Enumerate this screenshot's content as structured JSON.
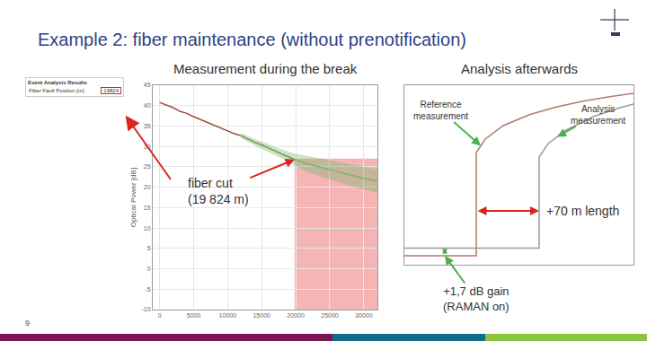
{
  "slide": {
    "title": "Example 2: fiber maintenance (without prenotification)",
    "page_number": 9
  },
  "table": {
    "title": "Event Analysis Results",
    "rows": [
      {
        "label": "Fiber Fault Position [m]",
        "value": "19824",
        "highlight": true
      }
    ]
  },
  "chart_data": [
    {
      "type": "line",
      "title": "Measurement during the break",
      "y_label": "Optical Power [dB]",
      "xlim": [
        -1000,
        32000
      ],
      "xticks": [
        0,
        5000,
        10000,
        15000,
        20000,
        25000,
        30000
      ],
      "ylim": [
        -10,
        45
      ],
      "yticks": [
        -10,
        -5,
        0,
        5,
        10,
        15,
        20,
        25,
        30,
        35,
        40,
        45
      ],
      "grid": true,
      "series": [
        {
          "type": "line",
          "color": "#9c4a3c",
          "x": [
            0,
            1000,
            2000,
            3000,
            4000,
            5000,
            6000,
            7000,
            8000,
            9000,
            10000,
            11000,
            12000,
            13000,
            14000,
            15000,
            16000,
            17000,
            18000,
            19000,
            19824
          ],
          "values": [
            40.8,
            40.1,
            39.5,
            38.6,
            38.1,
            37.3,
            36.6,
            36.0,
            35.2,
            34.6,
            33.9,
            33.1,
            32.6,
            31.8,
            31.0,
            30.4,
            29.6,
            28.9,
            28.1,
            27.4,
            26.8
          ]
        },
        {
          "type": "band",
          "color": "#6db35e",
          "x": [
            12000,
            14000,
            16000,
            18000,
            19824,
            22000,
            24000,
            26000,
            28000,
            30000,
            32000
          ],
          "values": [
            32.6,
            31.0,
            29.6,
            28.1,
            26.8,
            25.6,
            24.7,
            23.9,
            23.0,
            22.2,
            21.5
          ],
          "lower": [
            31.9,
            30.2,
            28.6,
            27.0,
            25.3,
            23.6,
            22.4,
            21.4,
            20.3,
            19.4,
            18.6
          ],
          "upper": [
            33.3,
            31.8,
            30.6,
            29.2,
            28.3,
            27.6,
            27.0,
            26.4,
            25.7,
            25.0,
            24.4
          ]
        }
      ],
      "highlight": {
        "x": [
          19824,
          32000
        ],
        "y": [
          -10,
          27
        ],
        "color": "#f5b5b5"
      },
      "annotations": [
        {
          "lines": [
            "fiber cut",
            "(19 824 m)"
          ],
          "x": 19824,
          "y": 26.8,
          "color": "#d9261c"
        }
      ]
    },
    {
      "type": "line",
      "title": "Analysis afterwards",
      "tick_labels": false,
      "xlim": [
        0,
        255
      ],
      "ylim": [
        0,
        40
      ],
      "grid": false,
      "series": [
        {
          "type": "line",
          "color": "#b07a6e",
          "x": [
            0,
            20,
            40,
            60,
            80,
            80,
            90,
            110,
            140,
            170,
            200,
            230,
            255
          ],
          "values": [
            2.0,
            2.0,
            2.0,
            2.0,
            2.0,
            25,
            28,
            31,
            33.5,
            35.2,
            36.5,
            37.5,
            38.2
          ]
        },
        {
          "type": "line",
          "color": "#9a9a9a",
          "x": [
            0,
            40,
            80,
            120,
            150,
            150,
            160,
            180,
            210,
            240,
            255
          ],
          "values": [
            3.7,
            3.7,
            3.7,
            3.7,
            3.7,
            24,
            27,
            30,
            33,
            35,
            35.8
          ]
        }
      ],
      "annotations": [
        {
          "lines": [
            "Reference",
            "measurement"
          ],
          "x": 85,
          "y": 26.5,
          "color": "#4caf50"
        },
        {
          "lines": [
            "Analysis",
            "measurement"
          ],
          "x": 170,
          "y": 28.5,
          "color": "#4caf50"
        },
        {
          "lines": [
            "+70 m length"
          ],
          "from_x": 80,
          "to_x": 150,
          "y": 12,
          "color": "#d9261c"
        },
        {
          "lines": [
            "+1,7 dB gain",
            "(RAMAN on)"
          ],
          "x": 45,
          "from_y": 2.0,
          "to_y": 3.7,
          "color": "#4caf50"
        }
      ]
    }
  ]
}
